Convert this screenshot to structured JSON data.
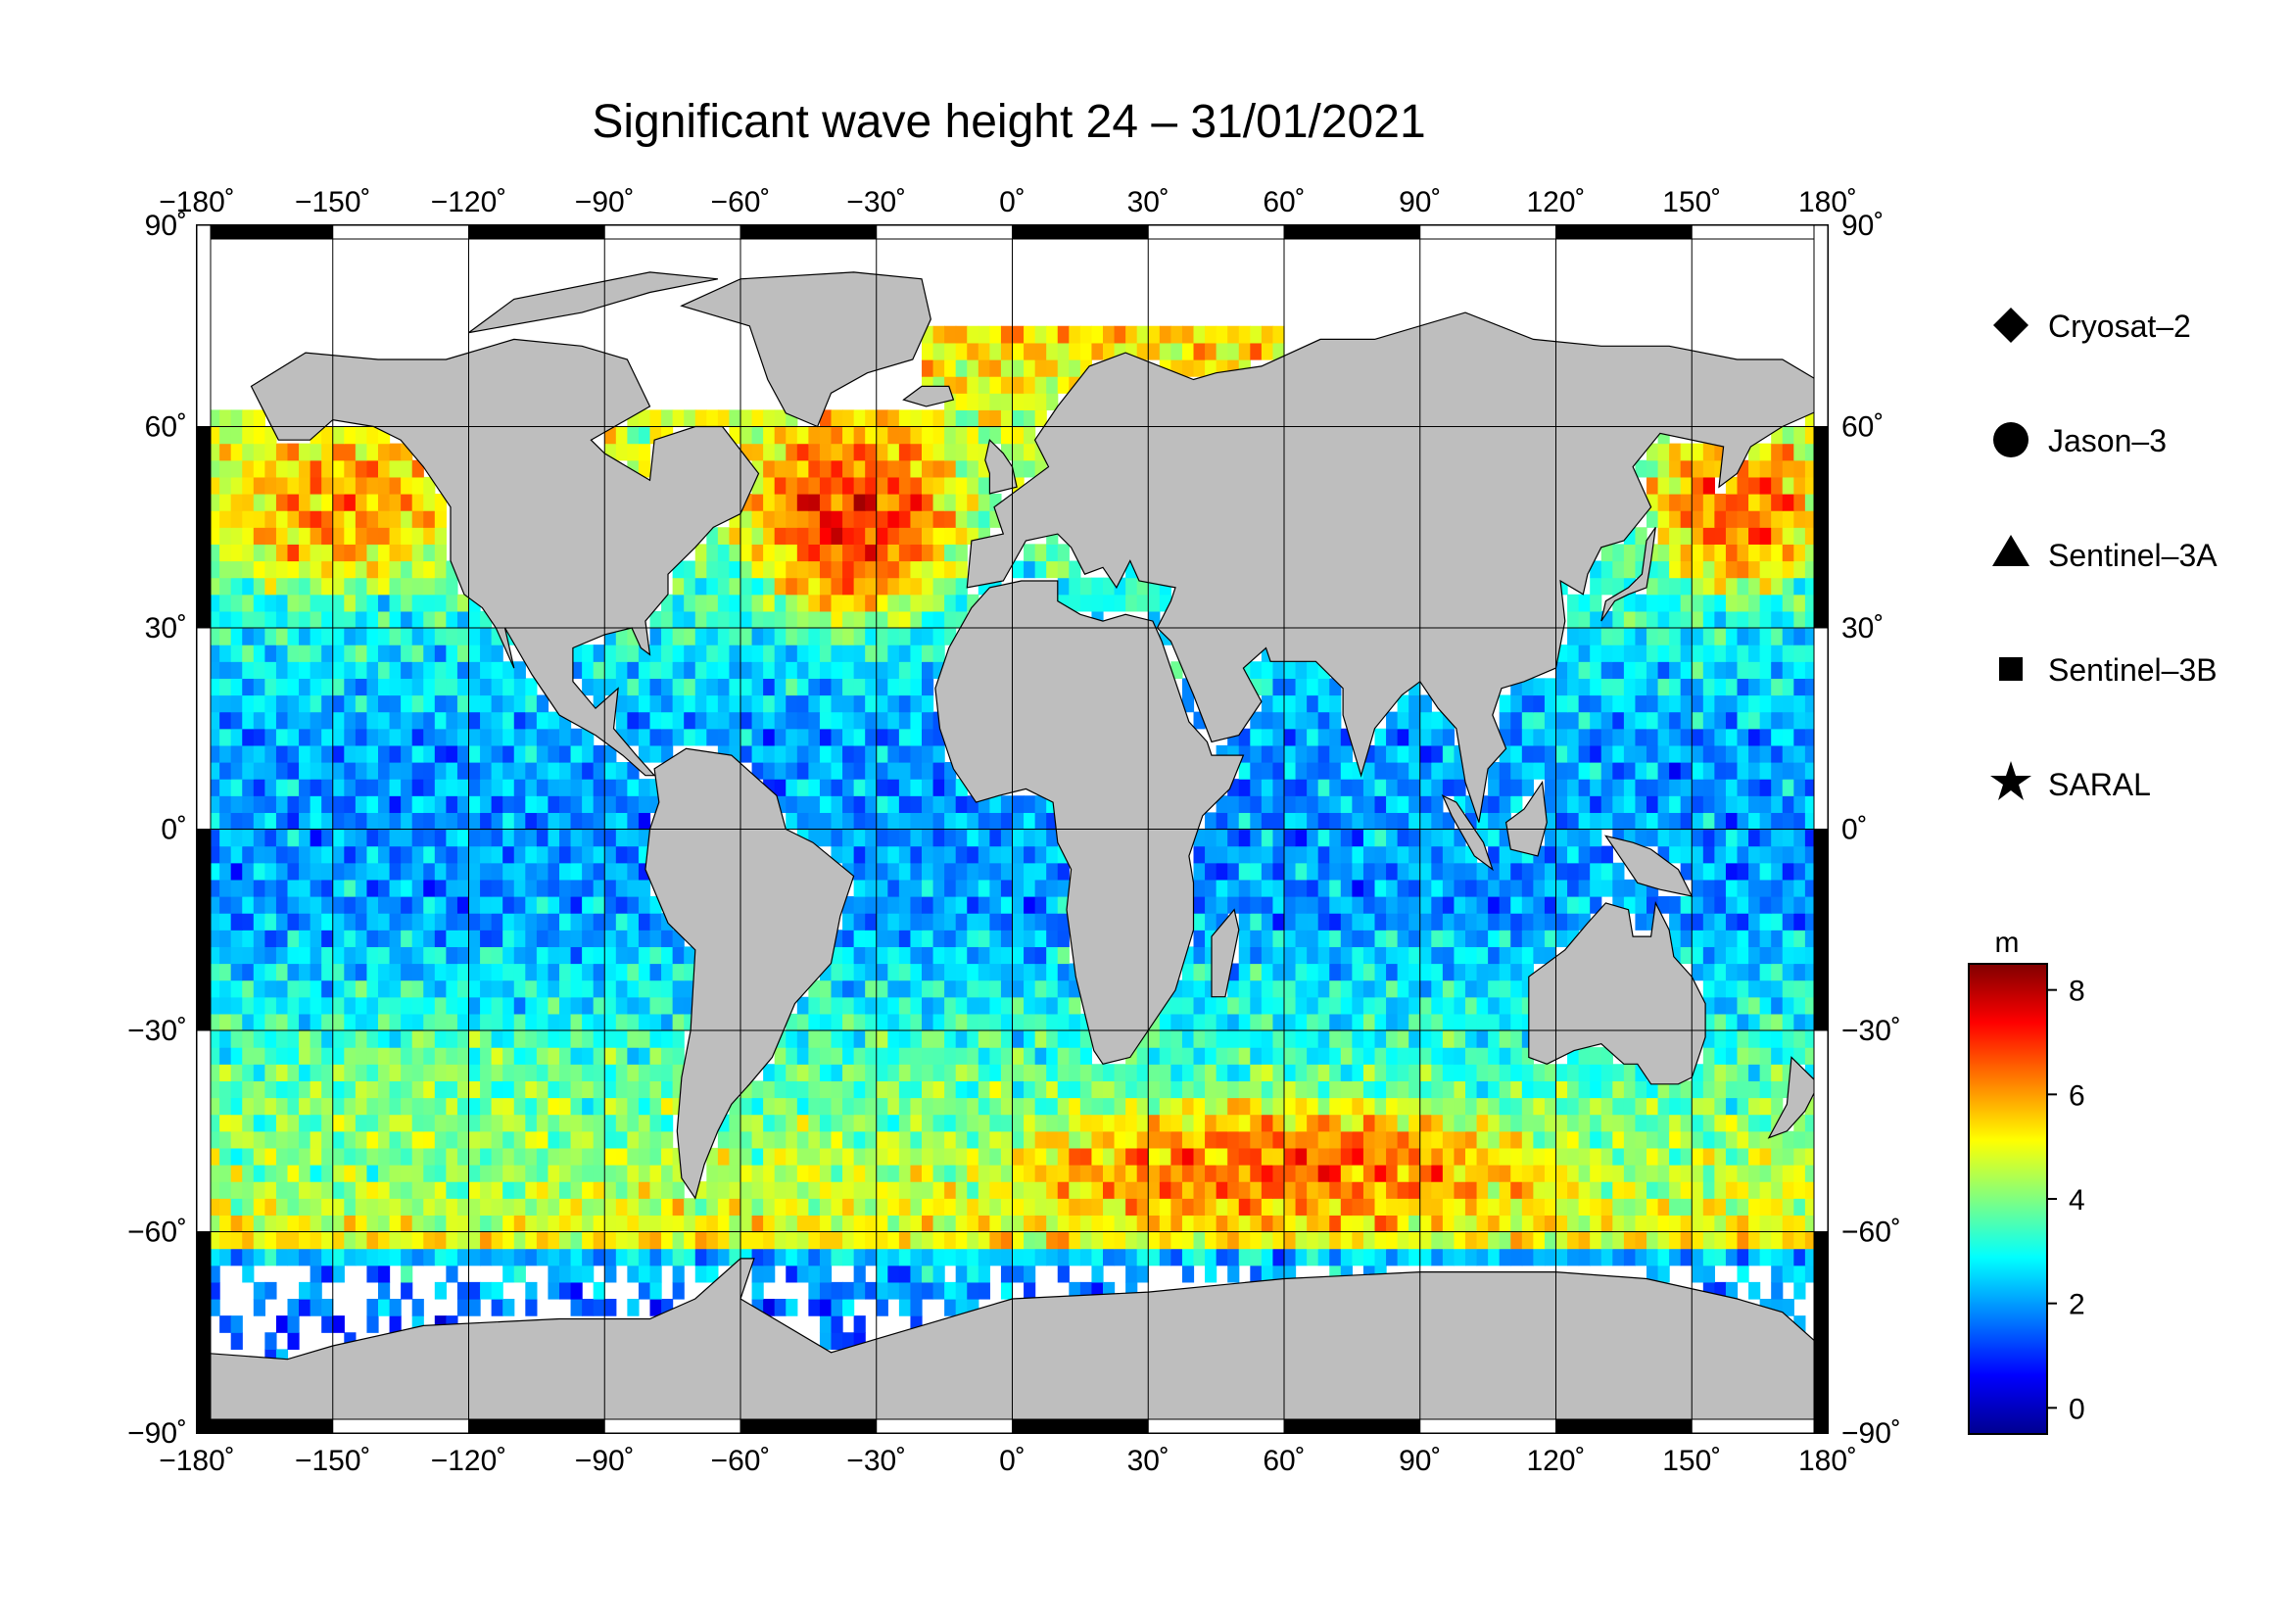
{
  "title": "Significant wave height 24 – 31/01/2021",
  "map": {
    "lon_range": [
      -180,
      180
    ],
    "lat_range": [
      -90,
      90
    ],
    "lon_ticks": [
      -180,
      -150,
      -120,
      -90,
      -60,
      -30,
      0,
      30,
      60,
      90,
      120,
      150,
      180
    ],
    "lat_ticks": [
      -90,
      -60,
      -30,
      0,
      30,
      60,
      90
    ],
    "lon_tick_labels": [
      "−180˚",
      "−150˚",
      "−120˚",
      "−90˚",
      "−60˚",
      "−30˚",
      "0˚",
      "30˚",
      "60˚",
      "90˚",
      "120˚",
      "150˚",
      "180˚"
    ],
    "lat_tick_labels": [
      "−90˚",
      "−60˚",
      "−30˚",
      "0˚",
      "30˚",
      "60˚",
      "90˚"
    ],
    "land_color": "#bebebe",
    "ice_color": "#ffffff",
    "grid": true
  },
  "legend": {
    "items": [
      {
        "symbol": "diamond",
        "label": "Cryosat–2"
      },
      {
        "symbol": "circle",
        "label": "Jason–3"
      },
      {
        "symbol": "triangle",
        "label": "Sentinel–3A"
      },
      {
        "symbol": "square",
        "label": "Sentinel–3B"
      },
      {
        "symbol": "star",
        "label": "SARAL"
      }
    ]
  },
  "colorbar": {
    "unit": "m",
    "min": -0.5,
    "max": 8.5,
    "ticks": [
      0,
      2,
      4,
      6,
      8
    ],
    "tick_labels": [
      "0",
      "2",
      "4",
      "6",
      "8"
    ],
    "stops": [
      "#00008f",
      "#0000ff",
      "#0080ff",
      "#00ffff",
      "#80ff80",
      "#ffff00",
      "#ff8000",
      "#ff0000",
      "#800000"
    ]
  },
  "chart_data": {
    "type": "heatmap",
    "variable": "Significant wave height",
    "unit": "m",
    "x_range": [
      -180,
      180
    ],
    "y_range": [
      -90,
      90
    ],
    "value_range": [
      0,
      8.5
    ],
    "regional_levels": [
      {
        "lon": [
          -60,
          -10
        ],
        "lat": [
          30,
          62
        ],
        "value": 7
      },
      {
        "lon": [
          -180,
          -120
        ],
        "lat": [
          35,
          60
        ],
        "value": 6
      },
      {
        "lon": [
          140,
          180
        ],
        "lat": [
          35,
          60
        ],
        "value": 6.5
      },
      {
        "lon": [
          0,
          120
        ],
        "lat": [
          -60,
          -40
        ],
        "value": 6.5
      },
      {
        "lon": [
          -180,
          180
        ],
        "lat": [
          -15,
          15
        ],
        "value": 2
      },
      {
        "lon": [
          -180,
          -90
        ],
        "lat": [
          -60,
          -30
        ],
        "value": 4
      }
    ]
  }
}
